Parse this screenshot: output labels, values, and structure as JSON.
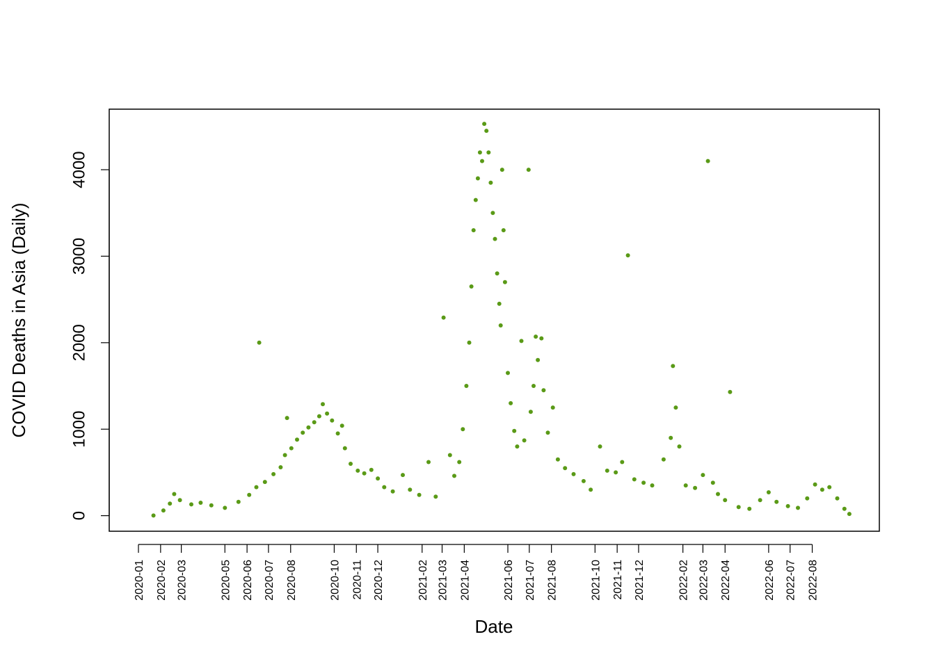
{
  "chart_data": {
    "type": "scatter",
    "title": "",
    "xlabel": "Date",
    "ylabel": "COVID Deaths in Asia (Daily)",
    "point_color": "#5a9a17",
    "axis_color": "#000000",
    "grid": false,
    "legend": "none",
    "x_domain": [
      "2020-01-01",
      "2022-09-24"
    ],
    "ylim": [
      -180,
      4700
    ],
    "yticks": [
      0,
      1000,
      2000,
      3000,
      4000
    ],
    "xticks": [
      "2020-01",
      "2020-02",
      "2020-03",
      "2020-05",
      "2020-06",
      "2020-07",
      "2020-08",
      "2020-10",
      "2020-11",
      "2020-12",
      "2021-02",
      "2021-03",
      "2021-04",
      "2021-06",
      "2021-07",
      "2021-08",
      "2021-10",
      "2021-11",
      "2021-12",
      "2022-02",
      "2022-03",
      "2022-04",
      "2022-06",
      "2022-07",
      "2022-08"
    ],
    "points": [
      [
        "2020-01-22",
        2
      ],
      [
        "2020-02-05",
        60
      ],
      [
        "2020-02-14",
        140
      ],
      [
        "2020-02-20",
        250
      ],
      [
        "2020-02-28",
        180
      ],
      [
        "2020-03-15",
        130
      ],
      [
        "2020-03-28",
        150
      ],
      [
        "2020-04-12",
        120
      ],
      [
        "2020-05-01",
        90
      ],
      [
        "2020-05-20",
        160
      ],
      [
        "2020-06-04",
        240
      ],
      [
        "2020-06-14",
        330
      ],
      [
        "2020-06-18",
        2000
      ],
      [
        "2020-06-26",
        390
      ],
      [
        "2020-07-08",
        480
      ],
      [
        "2020-07-18",
        560
      ],
      [
        "2020-07-24",
        700
      ],
      [
        "2020-07-27",
        1130
      ],
      [
        "2020-08-02",
        780
      ],
      [
        "2020-08-10",
        880
      ],
      [
        "2020-08-18",
        960
      ],
      [
        "2020-08-26",
        1020
      ],
      [
        "2020-09-03",
        1080
      ],
      [
        "2020-09-10",
        1150
      ],
      [
        "2020-09-15",
        1290
      ],
      [
        "2020-09-21",
        1180
      ],
      [
        "2020-09-28",
        1100
      ],
      [
        "2020-10-06",
        950
      ],
      [
        "2020-10-12",
        1040
      ],
      [
        "2020-10-16",
        780
      ],
      [
        "2020-10-24",
        600
      ],
      [
        "2020-11-03",
        520
      ],
      [
        "2020-11-12",
        490
      ],
      [
        "2020-11-22",
        530
      ],
      [
        "2020-12-01",
        430
      ],
      [
        "2020-12-10",
        330
      ],
      [
        "2020-12-22",
        280
      ],
      [
        "2021-01-05",
        470
      ],
      [
        "2021-01-15",
        300
      ],
      [
        "2021-01-28",
        240
      ],
      [
        "2021-02-10",
        620
      ],
      [
        "2021-02-20",
        220
      ],
      [
        "2021-03-03",
        2290
      ],
      [
        "2021-03-12",
        700
      ],
      [
        "2021-03-18",
        460
      ],
      [
        "2021-03-25",
        620
      ],
      [
        "2021-03-30",
        1000
      ],
      [
        "2021-04-04",
        1500
      ],
      [
        "2021-04-08",
        2000
      ],
      [
        "2021-04-11",
        2650
      ],
      [
        "2021-04-14",
        3300
      ],
      [
        "2021-04-17",
        3650
      ],
      [
        "2021-04-20",
        3900
      ],
      [
        "2021-04-23",
        4200
      ],
      [
        "2021-04-26",
        4100
      ],
      [
        "2021-04-29",
        4530
      ],
      [
        "2021-05-02",
        4450
      ],
      [
        "2021-05-05",
        4200
      ],
      [
        "2021-05-08",
        3850
      ],
      [
        "2021-05-11",
        3500
      ],
      [
        "2021-05-14",
        3200
      ],
      [
        "2021-05-17",
        2800
      ],
      [
        "2021-05-20",
        2450
      ],
      [
        "2021-05-22",
        2200
      ],
      [
        "2021-05-24",
        4000
      ],
      [
        "2021-05-26",
        3300
      ],
      [
        "2021-05-28",
        2700
      ],
      [
        "2021-06-01",
        1650
      ],
      [
        "2021-06-05",
        1300
      ],
      [
        "2021-06-10",
        980
      ],
      [
        "2021-06-14",
        800
      ],
      [
        "2021-06-20",
        2020
      ],
      [
        "2021-06-24",
        870
      ],
      [
        "2021-06-30",
        4000
      ],
      [
        "2021-07-03",
        1200
      ],
      [
        "2021-07-07",
        1500
      ],
      [
        "2021-07-10",
        2070
      ],
      [
        "2021-07-13",
        1800
      ],
      [
        "2021-07-18",
        2050
      ],
      [
        "2021-07-21",
        1450
      ],
      [
        "2021-07-27",
        960
      ],
      [
        "2021-08-03",
        1250
      ],
      [
        "2021-08-10",
        650
      ],
      [
        "2021-08-20",
        550
      ],
      [
        "2021-09-01",
        480
      ],
      [
        "2021-09-15",
        400
      ],
      [
        "2021-09-25",
        300
      ],
      [
        "2021-10-08",
        800
      ],
      [
        "2021-10-18",
        520
      ],
      [
        "2021-10-30",
        500
      ],
      [
        "2021-11-08",
        620
      ],
      [
        "2021-11-16",
        3010
      ],
      [
        "2021-11-25",
        420
      ],
      [
        "2021-12-08",
        380
      ],
      [
        "2021-12-20",
        350
      ],
      [
        "2022-01-05",
        650
      ],
      [
        "2022-01-15",
        900
      ],
      [
        "2022-01-18",
        1730
      ],
      [
        "2022-01-22",
        1250
      ],
      [
        "2022-01-27",
        800
      ],
      [
        "2022-02-05",
        350
      ],
      [
        "2022-02-18",
        320
      ],
      [
        "2022-03-01",
        470
      ],
      [
        "2022-03-08",
        4100
      ],
      [
        "2022-03-15",
        380
      ],
      [
        "2022-03-22",
        250
      ],
      [
        "2022-04-01",
        180
      ],
      [
        "2022-04-08",
        1430
      ],
      [
        "2022-04-20",
        100
      ],
      [
        "2022-05-05",
        80
      ],
      [
        "2022-05-20",
        180
      ],
      [
        "2022-06-01",
        270
      ],
      [
        "2022-06-12",
        160
      ],
      [
        "2022-06-28",
        110
      ],
      [
        "2022-07-12",
        90
      ],
      [
        "2022-07-25",
        200
      ],
      [
        "2022-08-05",
        360
      ],
      [
        "2022-08-15",
        300
      ],
      [
        "2022-08-25",
        330
      ],
      [
        "2022-09-05",
        200
      ],
      [
        "2022-09-15",
        80
      ],
      [
        "2022-09-22",
        20
      ]
    ]
  }
}
